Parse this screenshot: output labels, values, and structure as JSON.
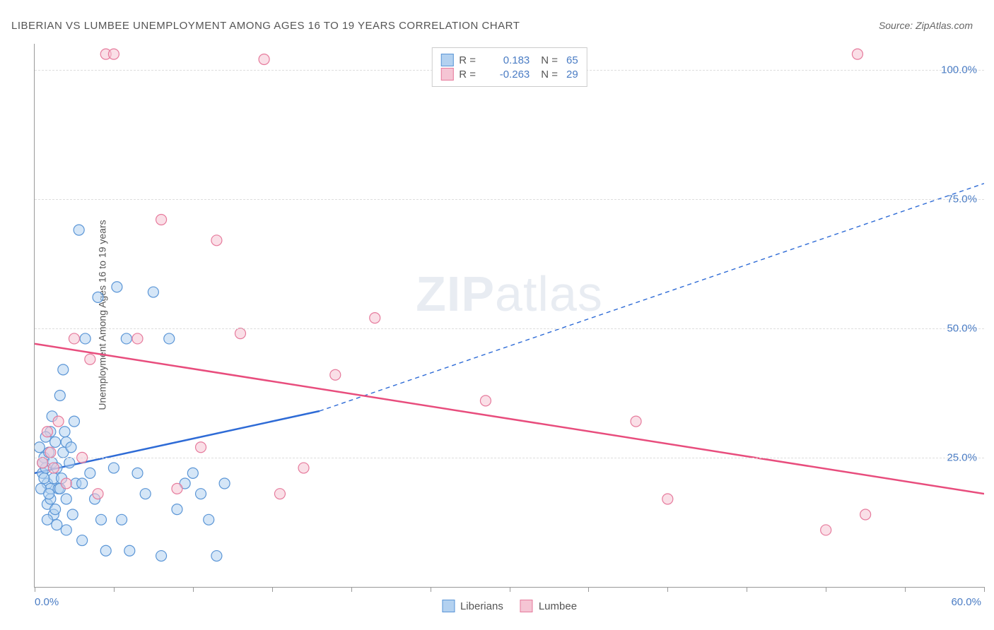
{
  "title": "LIBERIAN VS LUMBEE UNEMPLOYMENT AMONG AGES 16 TO 19 YEARS CORRELATION CHART",
  "source_prefix": "Source: ",
  "source": "ZipAtlas.com",
  "ylabel": "Unemployment Among Ages 16 to 19 years",
  "watermark_zip": "ZIP",
  "watermark_atlas": "atlas",
  "chart": {
    "type": "scatter",
    "xlim": [
      0,
      60
    ],
    "ylim": [
      0,
      105
    ],
    "x_ticks": [
      0,
      5,
      10,
      15,
      20,
      25,
      30,
      35,
      40,
      45,
      50,
      55,
      60
    ],
    "x_tick_labels": {
      "0": "0.0%",
      "60": "60.0%"
    },
    "y_gridlines": [
      25,
      50,
      75,
      100
    ],
    "y_tick_labels": {
      "25": "25.0%",
      "50": "50.0%",
      "75": "75.0%",
      "100": "100.0%"
    },
    "background_color": "#ffffff",
    "grid_color": "#dddddd",
    "axis_color": "#999999",
    "tick_label_color": "#4a7cc4",
    "marker_radius": 7.5,
    "marker_stroke_width": 1.2,
    "series": [
      {
        "name": "Liberians",
        "fill": "#b3d1f0",
        "stroke": "#5a95d6",
        "fill_opacity": 0.55,
        "R": "0.183",
        "N": "65",
        "trend": {
          "x1": 0,
          "y1": 22,
          "x2_solid": 18,
          "y2_solid": 34,
          "x2": 60,
          "y2": 78,
          "color": "#2e6bd6",
          "width": 2.5,
          "dash": "6,5"
        },
        "points": [
          [
            0.3,
            27
          ],
          [
            0.5,
            22
          ],
          [
            0.6,
            25
          ],
          [
            0.7,
            23
          ],
          [
            0.8,
            16
          ],
          [
            0.8,
            20
          ],
          [
            0.9,
            26
          ],
          [
            1.0,
            17
          ],
          [
            1.0,
            19
          ],
          [
            1.1,
            24
          ],
          [
            1.2,
            21
          ],
          [
            1.2,
            14
          ],
          [
            1.3,
            28
          ],
          [
            1.4,
            23
          ],
          [
            1.5,
            19
          ],
          [
            1.6,
            37
          ],
          [
            1.8,
            42
          ],
          [
            2.0,
            17
          ],
          [
            2.0,
            11
          ],
          [
            2.2,
            24
          ],
          [
            2.4,
            14
          ],
          [
            2.5,
            32
          ],
          [
            2.8,
            69
          ],
          [
            3.0,
            9
          ],
          [
            3.2,
            48
          ],
          [
            3.5,
            22
          ],
          [
            3.8,
            17
          ],
          [
            4.0,
            56
          ],
          [
            4.2,
            13
          ],
          [
            4.5,
            7
          ],
          [
            5.0,
            23
          ],
          [
            5.2,
            58
          ],
          [
            5.5,
            13
          ],
          [
            5.8,
            48
          ],
          [
            6.0,
            7
          ],
          [
            6.5,
            22
          ],
          [
            7.0,
            18
          ],
          [
            7.5,
            57
          ],
          [
            8.0,
            6
          ],
          [
            8.5,
            48
          ],
          [
            9.0,
            15
          ],
          [
            9.5,
            20
          ],
          [
            10.0,
            22
          ],
          [
            10.5,
            18
          ],
          [
            11.0,
            13
          ],
          [
            11.5,
            6
          ],
          [
            12.0,
            20
          ],
          [
            1.0,
            30
          ],
          [
            1.3,
            15
          ],
          [
            0.4,
            19
          ],
          [
            0.6,
            21
          ],
          [
            1.6,
            19
          ],
          [
            0.9,
            18
          ],
          [
            2.0,
            28
          ],
          [
            2.6,
            20
          ],
          [
            1.1,
            33
          ],
          [
            0.7,
            29
          ],
          [
            1.8,
            26
          ],
          [
            3.0,
            20
          ],
          [
            1.4,
            12
          ],
          [
            2.3,
            27
          ],
          [
            0.5,
            24
          ],
          [
            1.7,
            21
          ],
          [
            0.8,
            13
          ],
          [
            1.9,
            30
          ]
        ]
      },
      {
        "name": "Lumbee",
        "fill": "#f5c5d4",
        "stroke": "#e67a9c",
        "fill_opacity": 0.55,
        "R": "-0.263",
        "N": "29",
        "trend": {
          "x1": 0,
          "y1": 47,
          "x2": 60,
          "y2": 18,
          "color": "#e84d7d",
          "width": 2.5
        },
        "points": [
          [
            0.5,
            24
          ],
          [
            0.8,
            30
          ],
          [
            1.0,
            26
          ],
          [
            1.2,
            23
          ],
          [
            1.5,
            32
          ],
          [
            2.0,
            20
          ],
          [
            2.5,
            48
          ],
          [
            3.0,
            25
          ],
          [
            3.5,
            44
          ],
          [
            4.0,
            18
          ],
          [
            4.5,
            103
          ],
          [
            5.0,
            103
          ],
          [
            6.5,
            48
          ],
          [
            8.0,
            71
          ],
          [
            9.0,
            19
          ],
          [
            10.5,
            27
          ],
          [
            11.5,
            67
          ],
          [
            13.0,
            49
          ],
          [
            14.5,
            102
          ],
          [
            15.5,
            18
          ],
          [
            17.0,
            23
          ],
          [
            19.0,
            41
          ],
          [
            21.5,
            52
          ],
          [
            28.5,
            36
          ],
          [
            38.0,
            32
          ],
          [
            40.0,
            17
          ],
          [
            50.0,
            11
          ],
          [
            52.5,
            14
          ],
          [
            52.0,
            103
          ]
        ]
      }
    ]
  },
  "legend_bottom": [
    {
      "label": "Liberians",
      "fill": "#b3d1f0",
      "stroke": "#5a95d6"
    },
    {
      "label": "Lumbee",
      "fill": "#f5c5d4",
      "stroke": "#e67a9c"
    }
  ]
}
